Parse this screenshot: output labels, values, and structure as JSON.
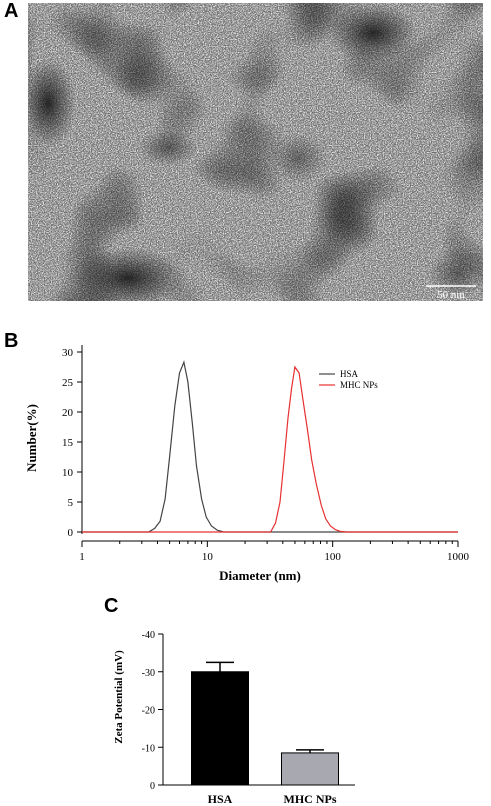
{
  "panels": {
    "a_label": "A",
    "b_label": "B",
    "c_label": "C"
  },
  "micrograph": {
    "scale_bar_label": "50 nm",
    "background_color": "#6c6c6c"
  },
  "chart_data": [
    {
      "type": "line",
      "xscale": "log",
      "xlabel": "Diameter (nm)",
      "ylabel": "Number(%)",
      "xlim": [
        1,
        1000
      ],
      "ylim": [
        0,
        30
      ],
      "xticks": [
        "1",
        "10",
        "100",
        "1000"
      ],
      "yticks": [
        "0",
        "5",
        "10",
        "15",
        "20",
        "25",
        "30"
      ],
      "legend_position": "top-right",
      "series": [
        {
          "name": "HSA",
          "color": "#444444",
          "x": [
            1,
            3.4,
            3.8,
            4.2,
            4.6,
            5.0,
            5.5,
            6.0,
            6.5,
            7.0,
            7.6,
            8.2,
            9.0,
            9.8,
            10.8,
            12.0,
            13.5,
            1000
          ],
          "y": [
            0,
            0,
            0.6,
            1.8,
            5.5,
            12.5,
            21,
            26.5,
            28.3,
            25,
            18,
            11,
            5.5,
            2.5,
            1.0,
            0.3,
            0,
            0
          ]
        },
        {
          "name": "MHC NPs",
          "color": "#e83030",
          "x": [
            1,
            32,
            35,
            38,
            41,
            44,
            47,
            50,
            54,
            58,
            63,
            68,
            74,
            81,
            88,
            96,
            105,
            115,
            130,
            1000
          ],
          "y": [
            0,
            0,
            1.5,
            5,
            12,
            19,
            24,
            27.5,
            26.5,
            22,
            17,
            12,
            8,
            4.5,
            2.2,
            1.0,
            0.4,
            0.1,
            0,
            0
          ]
        }
      ]
    },
    {
      "type": "bar",
      "categories": [
        "HSA",
        "MHC NPs"
      ],
      "values": [
        -30,
        -8.5
      ],
      "errors": [
        2.5,
        0.8
      ],
      "colors": [
        "#000000",
        "#a8a8b0"
      ],
      "ylabel": "Zeta Potential (mV)",
      "ylim": [
        0,
        -40
      ],
      "yticks": [
        "0",
        "-10",
        "-20",
        "-30",
        "-40"
      ]
    }
  ]
}
